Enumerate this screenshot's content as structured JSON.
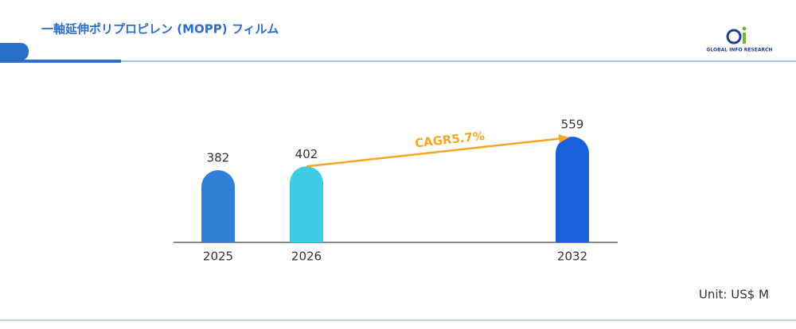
{
  "header": {
    "title": "一軸延伸ポリプロピレン (MOPP) フィルム",
    "logo_text": "GLOBAL INFO RESEARCH"
  },
  "chart_data": {
    "type": "bar",
    "categories": [
      "2025",
      "2026",
      "2032"
    ],
    "values": [
      382,
      402,
      559
    ],
    "colors": [
      "#2f80d6",
      "#3ecbe4",
      "#1a5fdb"
    ],
    "annotation": "CAGR5.7%",
    "unit": "Unit: US$ M"
  }
}
